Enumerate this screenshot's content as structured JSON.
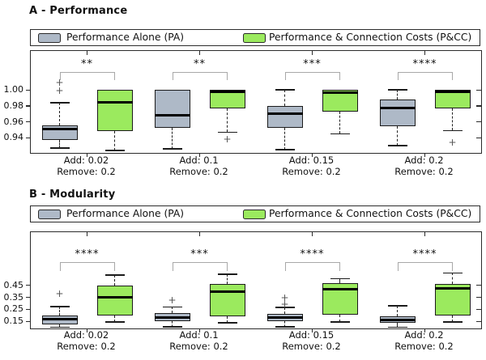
{
  "colors": {
    "pa_fill": "#aeb9c7",
    "pcc_fill": "#9bea5e",
    "box_border": "#1b1b1b",
    "median": "#000000",
    "bracket": "#a8a8a8",
    "outlier": "#555555",
    "frame": "#2b2b2b",
    "background": "#ffffff"
  },
  "style": {
    "outlier_marker": "+"
  },
  "legend": {
    "pa_label": "Performance Alone (PA)",
    "pcc_label": "Performance & Connection Costs (P&CC)"
  },
  "chart_data": [
    {
      "type": "boxplot",
      "title": "A - Performance",
      "ylabel": "",
      "ylim": [
        0.921,
        1.049
      ],
      "grid": false,
      "yticks": [
        {
          "value": 1.0,
          "label": "1.00"
        },
        {
          "value": 0.98,
          "label": "0.98"
        },
        {
          "value": 0.96,
          "label": "0.96"
        },
        {
          "value": 0.94,
          "label": "0.94"
        }
      ],
      "series_names": [
        "Performance Alone (PA)",
        "Performance & Connection Costs (P&CC)"
      ],
      "groups": [
        {
          "xlabel1": "Add: 0.02",
          "xlabel2": "Remove: 0.2",
          "significance": "**",
          "boxes": [
            {
              "series": "PA",
              "whisker_low": 0.927,
              "q1": 0.937,
              "median": 0.951,
              "q3": 0.956,
              "whisker_high": 0.984,
              "outliers": [
                0.999,
                1.009
              ]
            },
            {
              "series": "P&CC",
              "whisker_low": 0.924,
              "q1": 0.948,
              "median": 0.984,
              "q3": 1.0,
              "whisker_high": 1.0,
              "outliers": []
            }
          ]
        },
        {
          "xlabel1": "Add: 0.1",
          "xlabel2": "Remove: 0.2",
          "significance": "**",
          "boxes": [
            {
              "series": "PA",
              "whisker_low": 0.926,
              "q1": 0.953,
              "median": 0.968,
              "q3": 1.0,
              "whisker_high": 1.0,
              "outliers": []
            },
            {
              "series": "P&CC",
              "whisker_low": 0.947,
              "q1": 0.977,
              "median": 0.998,
              "q3": 1.0,
              "whisker_high": 1.0,
              "outliers": [
                0.938
              ]
            }
          ]
        },
        {
          "xlabel1": "Add: 0.15",
          "xlabel2": "Remove: 0.2",
          "significance": "***",
          "boxes": [
            {
              "series": "PA",
              "whisker_low": 0.925,
              "q1": 0.953,
              "median": 0.97,
              "q3": 0.98,
              "whisker_high": 1.0,
              "outliers": []
            },
            {
              "series": "P&CC",
              "whisker_low": 0.945,
              "q1": 0.973,
              "median": 0.997,
              "q3": 1.0,
              "whisker_high": 1.0,
              "outliers": []
            }
          ]
        },
        {
          "xlabel1": "Add: 0.2",
          "xlabel2": "Remove: 0.2",
          "significance": "****",
          "boxes": [
            {
              "series": "PA",
              "whisker_low": 0.93,
              "q1": 0.955,
              "median": 0.977,
              "q3": 0.988,
              "whisker_high": 1.0,
              "outliers": []
            },
            {
              "series": "P&CC",
              "whisker_low": 0.949,
              "q1": 0.977,
              "median": 0.998,
              "q3": 1.0,
              "whisker_high": 1.0,
              "outliers": [
                0.934
              ]
            }
          ]
        }
      ]
    },
    {
      "type": "boxplot",
      "title": "B - Modularity",
      "ylabel": "",
      "ylim": [
        0.09,
        0.894
      ],
      "grid": false,
      "yticks": [
        {
          "value": 0.45,
          "label": "0.45"
        },
        {
          "value": 0.35,
          "label": "0.35"
        },
        {
          "value": 0.25,
          "label": "0.25"
        },
        {
          "value": 0.15,
          "label": "0.15"
        }
      ],
      "series_names": [
        "Performance Alone (PA)",
        "Performance & Connection Costs (P&CC)"
      ],
      "groups": [
        {
          "xlabel1": "Add: 0.02",
          "xlabel2": "Remove: 0.2",
          "significance": "****",
          "boxes": [
            {
              "series": "PA",
              "whisker_low": 0.1,
              "q1": 0.125,
              "median": 0.168,
              "q3": 0.201,
              "whisker_high": 0.273,
              "outliers": [
                0.379
              ]
            },
            {
              "series": "P&CC",
              "whisker_low": 0.146,
              "q1": 0.2,
              "median": 0.35,
              "q3": 0.45,
              "whisker_high": 0.537,
              "outliers": []
            }
          ]
        },
        {
          "xlabel1": "Add: 0.1",
          "xlabel2": "Remove: 0.2",
          "significance": "***",
          "boxes": [
            {
              "series": "PA",
              "whisker_low": 0.102,
              "q1": 0.149,
              "median": 0.178,
              "q3": 0.217,
              "whisker_high": 0.27,
              "outliers": [
                0.325
              ]
            },
            {
              "series": "P&CC",
              "whisker_low": 0.136,
              "q1": 0.193,
              "median": 0.4,
              "q3": 0.462,
              "whisker_high": 0.542,
              "outliers": []
            }
          ]
        },
        {
          "xlabel1": "Add: 0.15",
          "xlabel2": "Remove: 0.2",
          "significance": "****",
          "boxes": [
            {
              "series": "PA",
              "whisker_low": 0.105,
              "q1": 0.15,
              "median": 0.178,
              "q3": 0.21,
              "whisker_high": 0.266,
              "outliers": [
                0.345,
                0.29
              ]
            },
            {
              "series": "P&CC",
              "whisker_low": 0.143,
              "q1": 0.202,
              "median": 0.42,
              "q3": 0.466,
              "whisker_high": 0.505,
              "outliers": []
            }
          ]
        },
        {
          "xlabel1": "Add: 0.2",
          "xlabel2": "Remove: 0.2",
          "significance": "****",
          "boxes": [
            {
              "series": "PA",
              "whisker_low": 0.1,
              "q1": 0.134,
              "median": 0.163,
              "q3": 0.193,
              "whisker_high": 0.278,
              "outliers": []
            },
            {
              "series": "P&CC",
              "whisker_low": 0.145,
              "q1": 0.196,
              "median": 0.426,
              "q3": 0.462,
              "whisker_high": 0.553,
              "outliers": []
            }
          ]
        }
      ]
    }
  ]
}
